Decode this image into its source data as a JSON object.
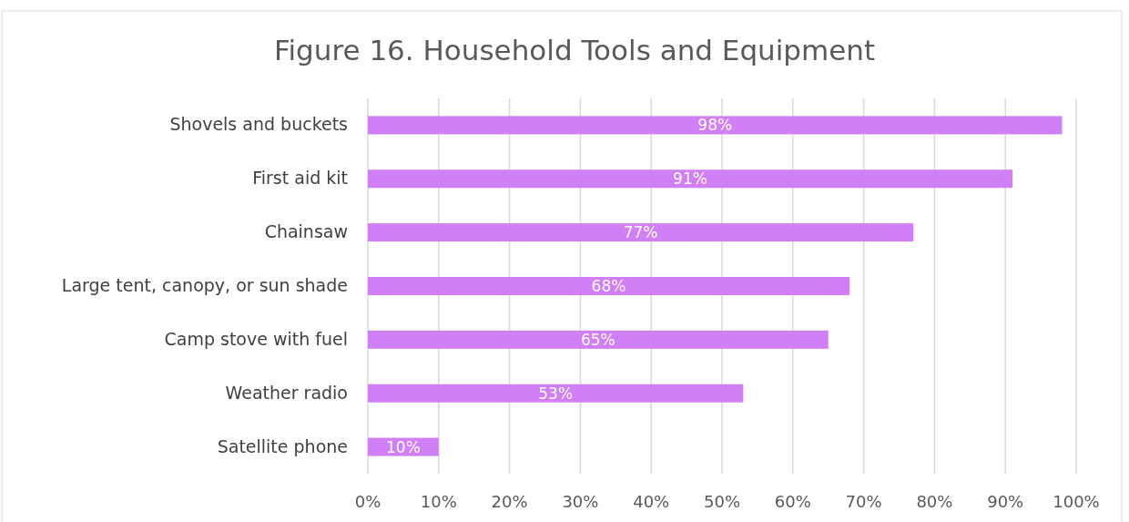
{
  "chart_data": {
    "type": "bar",
    "orientation": "horizontal",
    "title": "Figure 16. Household Tools and Equipment",
    "categories": [
      "Shovels and buckets",
      "First aid kit",
      "Chainsaw",
      "Large tent, canopy, or sun shade",
      "Camp stove with fuel",
      "Weather radio",
      "Satellite phone"
    ],
    "values": [
      98,
      91,
      77,
      68,
      65,
      53,
      10
    ],
    "value_labels": [
      "98%",
      "91%",
      "77%",
      "68%",
      "65%",
      "53%",
      "10%"
    ],
    "color": "#d17ff7",
    "xlim": [
      0,
      100
    ],
    "xticks": [
      {
        "value": 0,
        "label": "0%"
      },
      {
        "value": 10,
        "label": "10%"
      },
      {
        "value": 20,
        "label": "20%"
      },
      {
        "value": 30,
        "label": "30%"
      },
      {
        "value": 40,
        "label": "40%"
      },
      {
        "value": 50,
        "label": "50%"
      },
      {
        "value": 60,
        "label": "60%"
      },
      {
        "value": 70,
        "label": "70%"
      },
      {
        "value": 80,
        "label": "80%"
      },
      {
        "value": 90,
        "label": "90%"
      },
      {
        "value": 100,
        "label": "100%"
      }
    ],
    "grid": "x"
  }
}
